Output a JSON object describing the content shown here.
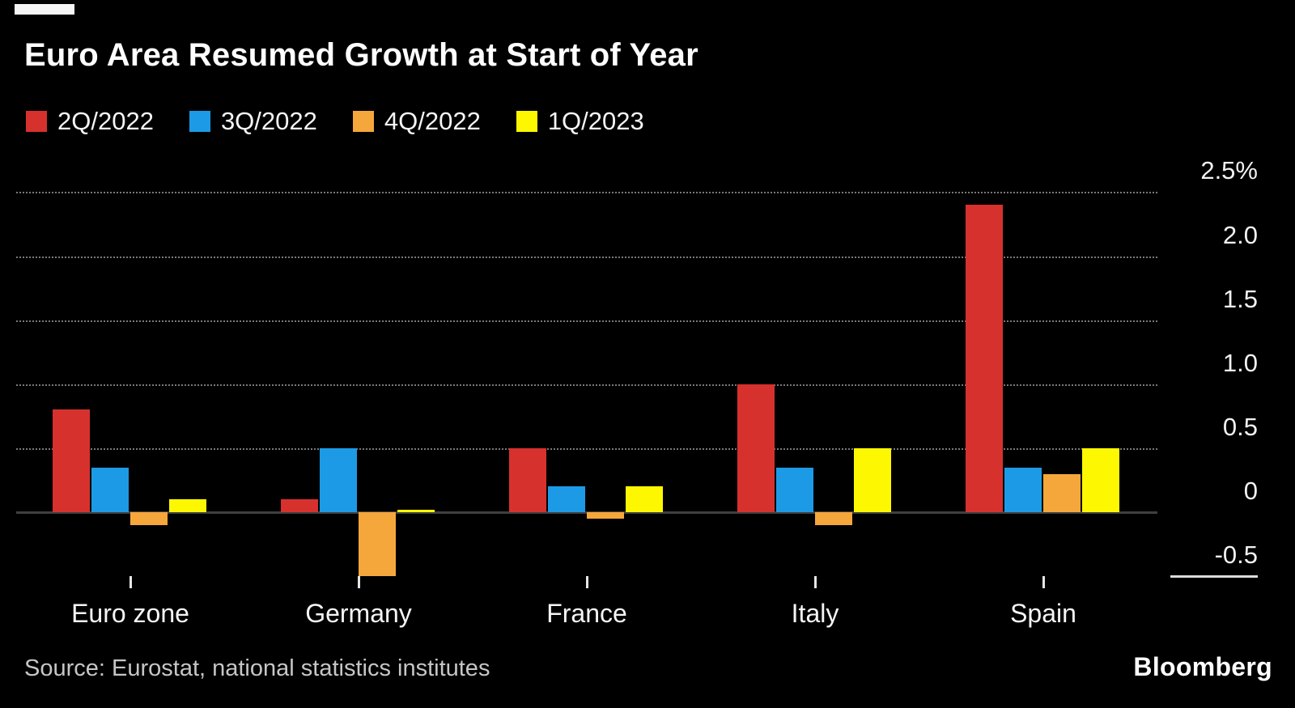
{
  "page": {
    "title": "Euro Area Resumed Growth at Start of Year",
    "source": "Source: Eurostat, national statistics institutes",
    "brand": "Bloomberg"
  },
  "colors": {
    "background": "#000000",
    "title_text": "#ffffff",
    "axis_text": "#f2f2f2",
    "grid": "#8f8f8f",
    "baseline": "#3f3f3f",
    "tick": "#e6e6e6",
    "source_text": "#c6c6c6",
    "brand_text": "#ffffff"
  },
  "chart_data": {
    "type": "bar",
    "title": "Euro Area Resumed Growth at Start of Year",
    "categories": [
      "Euro zone",
      "Germany",
      "France",
      "Italy",
      "Spain"
    ],
    "series": [
      {
        "name": "2Q/2022",
        "color": "#d7312e",
        "values": [
          0.8,
          0.1,
          0.5,
          1.0,
          2.4
        ]
      },
      {
        "name": "3Q/2022",
        "color": "#1d9ae6",
        "values": [
          0.35,
          0.5,
          0.2,
          0.35,
          0.35
        ]
      },
      {
        "name": "4Q/2022",
        "color": "#f5a73b",
        "values": [
          -0.1,
          -0.5,
          -0.05,
          -0.1,
          0.3
        ]
      },
      {
        "name": "1Q/2023",
        "color": "#fdf702",
        "values": [
          0.1,
          0.0,
          0.2,
          0.5,
          0.5
        ]
      }
    ],
    "unit": "%",
    "y_ticks": [
      {
        "value": 2.5,
        "label": "2.5%"
      },
      {
        "value": 2.0,
        "label": "2.0"
      },
      {
        "value": 1.5,
        "label": "1.5"
      },
      {
        "value": 1.0,
        "label": "1.0"
      },
      {
        "value": 0.5,
        "label": "0.5"
      },
      {
        "value": 0.0,
        "label": "0"
      },
      {
        "value": -0.5,
        "label": "-0.5"
      }
    ],
    "ylim": [
      -0.55,
      2.8
    ],
    "grid": "horizontal-dotted",
    "legend_position": "top-left",
    "xlabel": "",
    "ylabel": ""
  }
}
